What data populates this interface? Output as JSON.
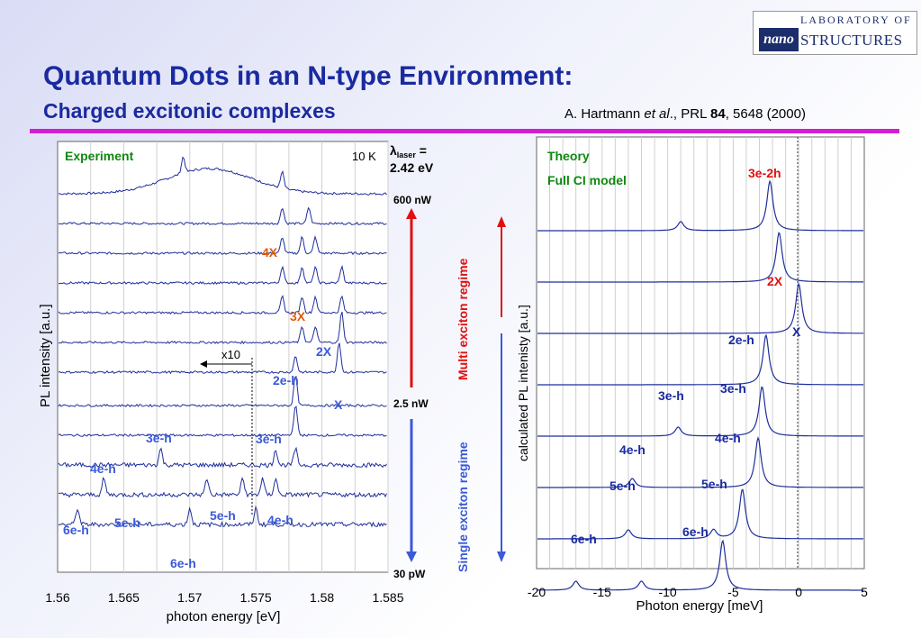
{
  "header": {
    "title": "Quantum Dots in an N-type Environment:",
    "subtitle": "Charged excitonic complexes",
    "citation_author": "A. Hartmann ",
    "citation_etal": "et al",
    "citation_mid": "., PRL ",
    "citation_volume": "84",
    "citation_end": ", 5648 (2000)"
  },
  "logo": {
    "top": "LABORATORY OF",
    "nano": "nano",
    "main": "STRUCTURES"
  },
  "colors": {
    "title": "#1a2aa0",
    "rule": "#d21fd6",
    "trace": "#1e2f9c",
    "red": "#e01010",
    "blue": "#3a5ad8",
    "green": "#118811",
    "orange": "#e05a10"
  },
  "experiment": {
    "label": "Experiment",
    "temperature": "10 K",
    "laser_symbol": "λ",
    "laser_sub": "laser",
    "laser_eq": " =",
    "laser_value": "2.42 eV",
    "power_top": "600 nW",
    "power_mid": "2.5 nW",
    "power_bottom": "30 pW",
    "ylabel": "PL intensity [a.u.]",
    "xlabel": "photon energy [eV]",
    "x_ticks": [
      "1.56",
      "1.565",
      "1.57",
      "1.575",
      "1.58",
      "1.585"
    ],
    "x10": "x10",
    "regime_multi": "Multi exciton regime",
    "regime_single": "Single exciton regime",
    "labels": [
      "4X",
      "3X",
      "2X",
      "2e-h",
      "X",
      "3e-h",
      "3e-h",
      "4e-h",
      "6e-h",
      "5e-h",
      "5e-h",
      "4e-h",
      "6e-h"
    ]
  },
  "theory": {
    "label1": "Theory",
    "label2": "Full CI model",
    "ylabel": "calculated PL intenisty [a.u.]",
    "xlabel": "Photon energy [meV]",
    "x_ticks": [
      "-20",
      "-15",
      "-10",
      "-5",
      "0",
      "5"
    ],
    "labels": [
      "3e-2h",
      "2X",
      "X",
      "2e-h",
      "3e-h",
      "3e-h",
      "4e-h",
      "4e-h",
      "5e-h",
      "5e-h",
      "6e-h",
      "6e-h"
    ]
  },
  "chart_data": [
    {
      "type": "line",
      "title": "Experiment",
      "xlabel": "photon energy [eV]",
      "ylabel": "PL intensity [a.u.]",
      "xlim": [
        1.56,
        1.585
      ],
      "x_ticks": [
        1.56,
        1.565,
        1.57,
        1.575,
        1.58,
        1.585
      ],
      "series": [
        {
          "power": "600 nW",
          "peaks": [
            1.5695,
            1.577
          ]
        },
        {
          "peaks": [
            1.577,
            1.579
          ]
        },
        {
          "label": "4X",
          "peaks": [
            1.577,
            1.5785,
            1.5795
          ]
        },
        {
          "peaks": [
            1.577,
            1.5785,
            1.5795,
            1.5815
          ]
        },
        {
          "label": "3X",
          "peaks": [
            1.577,
            1.5785,
            1.5795,
            1.5815
          ]
        },
        {
          "label": "2X",
          "peaks": [
            1.5785,
            1.5795,
            1.5815
          ]
        },
        {
          "power": "2.5 nW",
          "label": "X",
          "peaks": [
            1.578,
            1.5813
          ]
        },
        {
          "label": "2e-h",
          "peaks": [
            1.578
          ]
        },
        {
          "label": "3e-h",
          "peaks": [
            1.578
          ]
        },
        {
          "label": "4e-h",
          "peaks": [
            1.5678,
            1.5765,
            1.578
          ]
        },
        {
          "label": "5e-h",
          "peaks": [
            1.5635,
            1.5713,
            1.574,
            1.5755,
            1.5765
          ]
        },
        {
          "power": "30 pW",
          "label": "6e-h",
          "peaks": [
            1.5615,
            1.57,
            1.575
          ]
        }
      ]
    },
    {
      "type": "line",
      "title": "Theory",
      "subtitle": "Full CI model",
      "xlabel": "Photon energy [meV]",
      "ylabel": "calculated PL intenisty [a.u.]",
      "xlim": [
        -20,
        5
      ],
      "x_ticks": [
        -20,
        -15,
        -10,
        -5,
        0,
        5
      ],
      "series": [
        {
          "label": "3e-2h",
          "peaks": [
            -9,
            -2.2
          ]
        },
        {
          "label": "2X",
          "peaks": [
            -1.5
          ]
        },
        {
          "label": "X",
          "peaks": [
            0
          ]
        },
        {
          "label": "2e-h",
          "peaks": [
            -2.5
          ]
        },
        {
          "label": "3e-h",
          "peaks": [
            -9.2,
            -2.8
          ]
        },
        {
          "label": "4e-h",
          "peaks": [
            -12.7,
            -3.1
          ]
        },
        {
          "label": "5e-h",
          "peaks": [
            -13,
            -6.5,
            -4.3
          ]
        },
        {
          "label": "6e-h",
          "peaks": [
            -17,
            -12,
            -5.8
          ]
        }
      ]
    }
  ]
}
